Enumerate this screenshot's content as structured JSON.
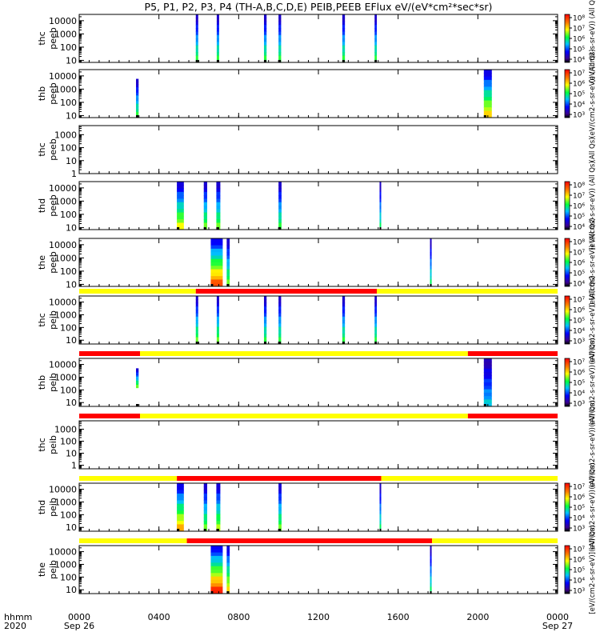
{
  "title": "P5, P1, P2, P3, P4 (TH-A,B,C,D,E) PEIB,PEEB EFlux eV/(eV*cm²*sec*sr)",
  "xaxis": {
    "corner_label_1": "hhmm",
    "corner_label_2": "2020",
    "tick_labels": [
      "0000",
      "0400",
      "0800",
      "1200",
      "1600",
      "2000",
      "0000"
    ],
    "date_labels": [
      "Sep 26",
      "Sep 27"
    ]
  },
  "colors": {
    "mode_fast": "#ff0000",
    "mode_slow": "#ffff00"
  },
  "chart_data": {
    "type": "heatmap",
    "x_unit": "hours since 2020-09-26 00:00",
    "xlim": [
      0,
      24
    ],
    "x_ticks": [
      0,
      4,
      8,
      12,
      16,
      20,
      24
    ],
    "y_scale": "log",
    "colormap": "rainbow",
    "panels": [
      {
        "probe": "thc",
        "instrument": "peeb",
        "ylim": [
          7,
          30000
        ],
        "y_tick_labels": [
          "10",
          "100",
          "1000",
          "10000"
        ],
        "y_ticks": [
          10,
          100,
          1000,
          10000
        ],
        "colorbar_ticks": [
          "10⁴",
          "10⁵",
          "10⁶",
          "10⁷",
          "10⁸"
        ],
        "colorbar_label": "(eV/(cm2-s-sr-eV)) (All Qs)",
        "segments": [
          {
            "start_h": 5.85,
            "end_h": 5.97,
            "intensity": 0.55
          },
          {
            "start_h": 6.9,
            "end_h": 7.02,
            "intensity": 0.55
          },
          {
            "start_h": 9.27,
            "end_h": 9.4,
            "intensity": 0.55
          },
          {
            "start_h": 10.0,
            "end_h": 10.13,
            "intensity": 0.55
          },
          {
            "start_h": 13.2,
            "end_h": 13.33,
            "intensity": 0.55
          },
          {
            "start_h": 14.82,
            "end_h": 14.93,
            "intensity": 0.55
          }
        ]
      },
      {
        "probe": "thb",
        "instrument": "peeb",
        "ylim": [
          7,
          30000
        ],
        "y_tick_labels": [
          "10",
          "100",
          "1000",
          "10000"
        ],
        "y_ticks": [
          10,
          100,
          1000,
          10000
        ],
        "colorbar_ticks": [
          "10³",
          "10⁴",
          "10⁵",
          "10⁶",
          "10⁷"
        ],
        "colorbar_label": "(eV/(cm2-s-sr-eV)) (All Qs)",
        "segments": [
          {
            "start_h": 2.85,
            "end_h": 2.98,
            "intensity": 0.55,
            "ymax": 6000
          },
          {
            "start_h": 20.3,
            "end_h": 20.7,
            "intensity": 0.75
          }
        ]
      },
      {
        "probe": "thc",
        "instrument": "peeb",
        "ylim": [
          1,
          5000
        ],
        "y_tick_labels": [
          "1",
          "10",
          "100",
          "1000"
        ],
        "y_ticks": [
          1,
          10,
          100,
          1000
        ],
        "colorbar_label": "(All Qs)",
        "segments": []
      },
      {
        "probe": "thd",
        "instrument": "peeb",
        "ylim": [
          7,
          30000
        ],
        "y_tick_labels": [
          "10",
          "100",
          "1000",
          "10000"
        ],
        "y_ticks": [
          10,
          100,
          1000,
          10000
        ],
        "colorbar_ticks": [
          "10⁴",
          "10⁵",
          "10⁶",
          "10⁷",
          "10⁸"
        ],
        "colorbar_label": "(eV/(cm2-s-sr-eV)) (All Qs)",
        "segments": [
          {
            "start_h": 4.9,
            "end_h": 5.25,
            "intensity": 0.7
          },
          {
            "start_h": 6.25,
            "end_h": 6.42,
            "intensity": 0.6
          },
          {
            "start_h": 6.88,
            "end_h": 7.08,
            "intensity": 0.6
          },
          {
            "start_h": 10.0,
            "end_h": 10.15,
            "intensity": 0.55
          },
          {
            "start_h": 15.07,
            "end_h": 15.15,
            "intensity": 0.5
          }
        ]
      },
      {
        "probe": "the",
        "instrument": "peeb",
        "ylim": [
          7,
          30000
        ],
        "y_tick_labels": [
          "10",
          "100",
          "1000",
          "10000"
        ],
        "y_ticks": [
          10,
          100,
          1000,
          10000
        ],
        "colorbar_ticks": [
          "10⁴",
          "10⁵",
          "10⁶",
          "10⁷",
          "10⁸"
        ],
        "colorbar_label": "(eV/(cm2-s-sr-eV)) (All Qs)",
        "segments": [
          {
            "start_h": 6.6,
            "end_h": 7.2,
            "intensity": 0.9
          },
          {
            "start_h": 7.4,
            "end_h": 7.55,
            "intensity": 0.6
          },
          {
            "start_h": 17.6,
            "end_h": 17.68,
            "intensity": 0.5
          }
        ]
      },
      {
        "probe": "thc",
        "instrument": "peib",
        "ylim": [
          5,
          30000
        ],
        "y_tick_labels": [
          "10",
          "100",
          "1000",
          "10000"
        ],
        "y_ticks": [
          10,
          100,
          1000,
          10000
        ],
        "colorbar_ticks": [
          "10³",
          "10⁴",
          "10⁵",
          "10⁶",
          "10⁷"
        ],
        "colorbar_label": "(eV/(cm2-s-sr-eV)) (All Qs)",
        "segments": [
          {
            "start_h": 5.85,
            "end_h": 5.97,
            "intensity": 0.6
          },
          {
            "start_h": 6.9,
            "end_h": 7.02,
            "intensity": 0.6
          },
          {
            "start_h": 9.27,
            "end_h": 9.4,
            "intensity": 0.55
          },
          {
            "start_h": 10.0,
            "end_h": 10.13,
            "intensity": 0.55
          },
          {
            "start_h": 13.2,
            "end_h": 13.33,
            "intensity": 0.55
          },
          {
            "start_h": 14.82,
            "end_h": 14.93,
            "intensity": 0.55
          }
        ],
        "mode_bar": [
          {
            "start_h": 0,
            "end_h": 5.85,
            "mode": "slow"
          },
          {
            "start_h": 5.85,
            "end_h": 14.93,
            "mode": "fast"
          },
          {
            "start_h": 14.93,
            "end_h": 24,
            "mode": "slow"
          }
        ]
      },
      {
        "probe": "thb",
        "instrument": "peib",
        "ylim": [
          5,
          30000
        ],
        "y_tick_labels": [
          "10",
          "100",
          "1000",
          "10000"
        ],
        "y_ticks": [
          10,
          100,
          1000,
          10000
        ],
        "colorbar_ticks": [
          "10³",
          "10⁴",
          "10⁵",
          "10⁶",
          "10⁷"
        ],
        "colorbar_label": "(eV/(cm2-s-sr-eV)) (All Qs)",
        "segments": [
          {
            "start_h": 2.85,
            "end_h": 2.98,
            "intensity": 0.6,
            "ymin": 150,
            "ymax": 5000
          },
          {
            "start_h": 20.3,
            "end_h": 20.7,
            "intensity": 0.4
          }
        ],
        "mode_bar": [
          {
            "start_h": 0,
            "end_h": 3.05,
            "mode": "fast"
          },
          {
            "start_h": 3.05,
            "end_h": 19.5,
            "mode": "slow"
          },
          {
            "start_h": 19.5,
            "end_h": 24,
            "mode": "fast"
          }
        ]
      },
      {
        "probe": "thc",
        "instrument": "peib",
        "ylim": [
          0.5,
          5000
        ],
        "y_tick_labels": [
          "1",
          "10",
          "100",
          "1000"
        ],
        "y_ticks": [
          1,
          10,
          100,
          1000
        ],
        "colorbar_label": "(eV/(cm2-s-sr-eV)) (All Qs)",
        "segments": [],
        "mode_bar": [
          {
            "start_h": 0,
            "end_h": 3.05,
            "mode": "fast"
          },
          {
            "start_h": 3.05,
            "end_h": 19.5,
            "mode": "slow"
          },
          {
            "start_h": 19.5,
            "end_h": 24,
            "mode": "fast"
          }
        ]
      },
      {
        "probe": "thd",
        "instrument": "peib",
        "ylim": [
          5,
          30000
        ],
        "y_tick_labels": [
          "10",
          "100",
          "1000",
          "10000"
        ],
        "y_ticks": [
          10,
          100,
          1000,
          10000
        ],
        "colorbar_ticks": [
          "10³",
          "10⁴",
          "10⁵",
          "10⁶",
          "10⁷"
        ],
        "colorbar_label": "(eV/(cm2-s-sr-eV)) (All Qs)",
        "segments": [
          {
            "start_h": 4.9,
            "end_h": 5.25,
            "intensity": 0.8
          },
          {
            "start_h": 6.25,
            "end_h": 6.42,
            "intensity": 0.6
          },
          {
            "start_h": 6.88,
            "end_h": 7.08,
            "intensity": 0.65
          },
          {
            "start_h": 10.0,
            "end_h": 10.15,
            "intensity": 0.6
          },
          {
            "start_h": 15.07,
            "end_h": 15.15,
            "intensity": 0.5
          }
        ],
        "mode_bar": [
          {
            "start_h": 0,
            "end_h": 4.9,
            "mode": "slow"
          },
          {
            "start_h": 4.9,
            "end_h": 15.15,
            "mode": "fast"
          },
          {
            "start_h": 15.15,
            "end_h": 24,
            "mode": "slow"
          }
        ]
      },
      {
        "probe": "the",
        "instrument": "peib",
        "ylim": [
          5,
          30000
        ],
        "y_tick_labels": [
          "10",
          "100",
          "1000",
          "10000"
        ],
        "y_ticks": [
          10,
          100,
          1000,
          10000
        ],
        "colorbar_ticks": [
          "10³",
          "10⁴",
          "10⁵",
          "10⁶",
          "10⁷"
        ],
        "colorbar_label": "[eV/(cm2-s-sr-eV)] (All Qs)",
        "segments": [
          {
            "start_h": 6.6,
            "end_h": 7.2,
            "intensity": 0.95
          },
          {
            "start_h": 7.4,
            "end_h": 7.55,
            "intensity": 0.75
          },
          {
            "start_h": 17.6,
            "end_h": 17.68,
            "intensity": 0.5
          }
        ],
        "mode_bar": [
          {
            "start_h": 0,
            "end_h": 5.4,
            "mode": "slow"
          },
          {
            "start_h": 5.4,
            "end_h": 17.7,
            "mode": "fast"
          },
          {
            "start_h": 17.7,
            "end_h": 24,
            "mode": "slow"
          }
        ]
      }
    ]
  }
}
